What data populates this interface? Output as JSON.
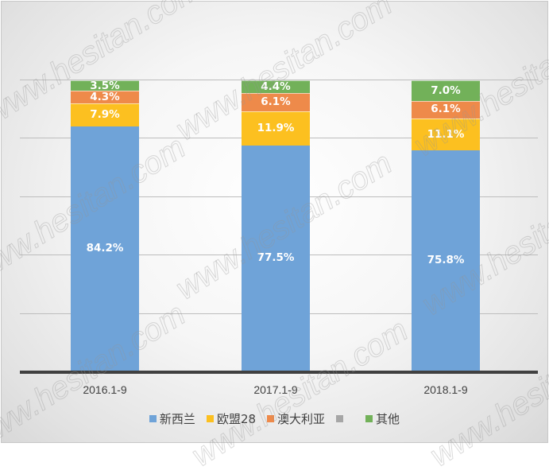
{
  "chart_data": {
    "type": "bar",
    "stacked": true,
    "percent_stacked": true,
    "title": "",
    "xlabel": "",
    "ylabel": "",
    "ylim": [
      0,
      100
    ],
    "grid": true,
    "legend_position": "bottom",
    "categories": [
      "2016.1-9",
      "2017.1-9",
      "2018.1-9"
    ],
    "series": [
      {
        "name": "新西兰",
        "color": "#6fa3d8",
        "values": [
          84.2,
          77.5,
          75.8
        ],
        "labels": [
          "84.2%",
          "77.5%",
          "75.8%"
        ]
      },
      {
        "name": "欧盟28",
        "color": "#fcc020",
        "values": [
          7.9,
          11.9,
          11.1
        ],
        "labels": [
          "7.9%",
          "11.9%",
          "11.1%"
        ]
      },
      {
        "name": "澳大利亚",
        "color": "#ee8a4a",
        "values": [
          4.3,
          6.1,
          6.1
        ],
        "labels": [
          "4.3%",
          "6.1%",
          "6.1%"
        ]
      },
      {
        "name": "",
        "color": "#a6a6a6",
        "values": [
          0,
          0,
          0
        ],
        "labels": [
          "",
          "",
          ""
        ]
      },
      {
        "name": "其他",
        "color": "#72b159",
        "values": [
          3.5,
          4.4,
          7.0
        ],
        "labels": [
          "3.5%",
          "4.4%",
          "7.0%"
        ]
      }
    ]
  },
  "legend": {
    "items": [
      {
        "label": "新西兰",
        "color": "#6fa3d8"
      },
      {
        "label": "欧盟28",
        "color": "#fcc020"
      },
      {
        "label": "澳大利亚",
        "color": "#ee8a4a"
      },
      {
        "label": "",
        "color": "#a6a6a6"
      },
      {
        "label": "其他",
        "color": "#72b159"
      }
    ]
  },
  "watermark": "www.hesitan.com"
}
